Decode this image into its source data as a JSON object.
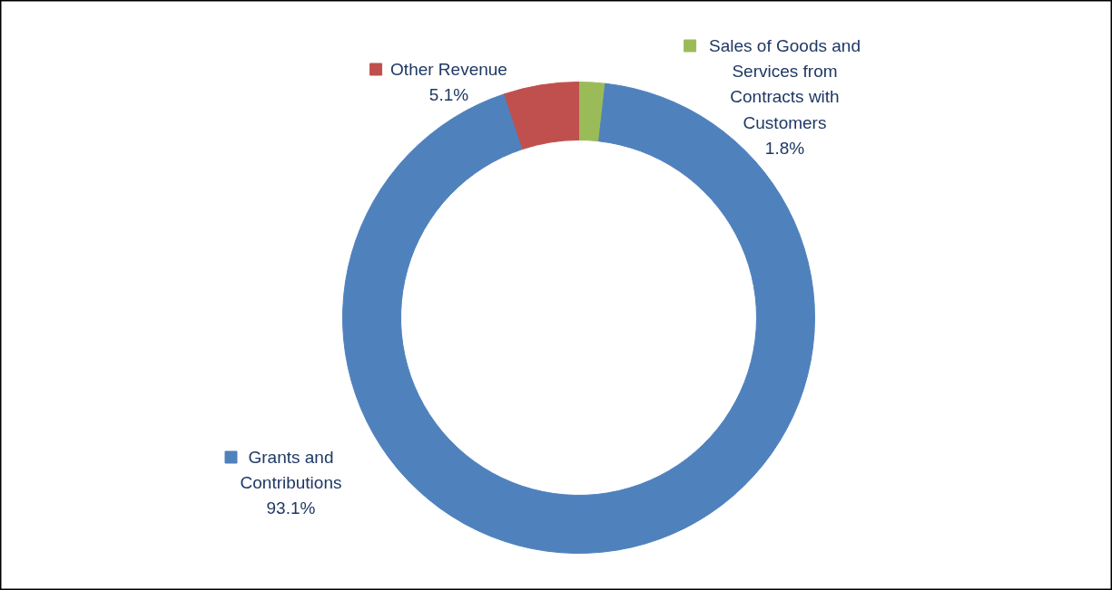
{
  "chart_data": {
    "type": "donut",
    "categories": [
      "Sales of Goods and Services from Contracts with Customers",
      "Grants and Contributions",
      "Other Revenue"
    ],
    "values": [
      1.8,
      93.1,
      5.1
    ],
    "colors": [
      "#9bbb59",
      "#4f81bd",
      "#c0504d"
    ],
    "value_labels": [
      "1.8%",
      "93.1%",
      "5.1%"
    ],
    "legend": "top"
  }
}
